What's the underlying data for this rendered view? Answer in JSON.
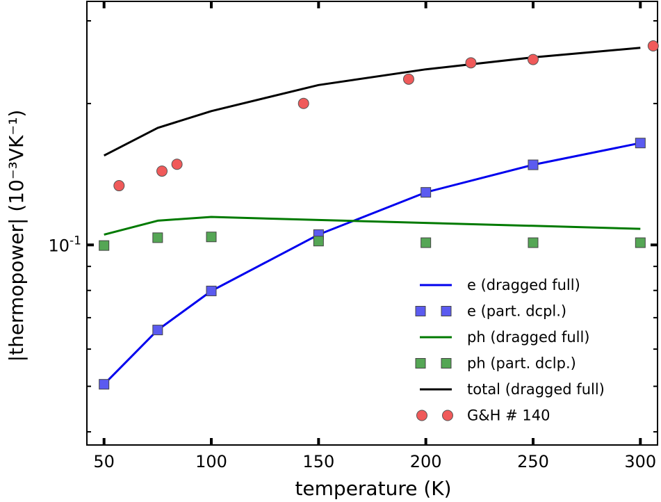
{
  "chart_data": {
    "type": "line",
    "title": "",
    "xlabel": "temperature (K)",
    "ylabel": "|thermopower| (10⁻³VK⁻¹)",
    "xlim": [
      42,
      308
    ],
    "ylim": [
      0.0375,
      0.33
    ],
    "yscale": "log",
    "x_ticks": [
      50,
      100,
      150,
      200,
      250,
      300
    ],
    "x_tick_labels": [
      "50",
      "100",
      "150",
      "200",
      "250",
      "300"
    ],
    "y_major_tick": {
      "value": 0.1,
      "label_base": "10",
      "label_exp": "-1"
    },
    "y_minor_ticks": [
      0.04,
      0.05,
      0.06,
      0.07,
      0.08,
      0.09,
      0.2,
      0.3
    ],
    "grid": false,
    "legend_position": "lower-right",
    "series": [
      {
        "name": "e (dragged full)",
        "kind": "line",
        "color": "#0000ee",
        "x": [
          50,
          75,
          100,
          150,
          200,
          250,
          300
        ],
        "y": [
          0.0505,
          0.0659,
          0.0798,
          0.1052,
          0.1294,
          0.1481,
          0.1648
        ]
      },
      {
        "name": "e (part. dcpl.)",
        "kind": "square",
        "color": "#5b5bf0",
        "x": [
          50,
          75,
          100,
          150,
          200,
          250,
          300
        ],
        "y": [
          0.0505,
          0.0659,
          0.0798,
          0.1052,
          0.1294,
          0.1481,
          0.1648
        ]
      },
      {
        "name": "ph (dragged full)",
        "kind": "line",
        "color": "#007a00",
        "x": [
          50,
          75,
          100,
          150,
          200,
          250,
          300
        ],
        "y": [
          0.1052,
          0.1126,
          0.1147,
          0.113,
          0.1114,
          0.1098,
          0.1082
        ]
      },
      {
        "name": "ph (part. dclp.)",
        "kind": "square",
        "color": "#55a655",
        "x": [
          50,
          75,
          100,
          150,
          200,
          250,
          300
        ],
        "y": [
          0.0997,
          0.1036,
          0.104,
          0.1019,
          0.1011,
          0.1011,
          0.1011
        ]
      },
      {
        "name": "total (dragged full)",
        "kind": "line",
        "color": "#000000",
        "x": [
          50,
          75,
          100,
          150,
          200,
          250,
          300
        ],
        "y": [
          0.155,
          0.1775,
          0.1927,
          0.219,
          0.2365,
          0.2508,
          0.2629
        ]
      },
      {
        "name": "G&H # 140",
        "kind": "circle",
        "color": "#f05a5a",
        "x": [
          57,
          77,
          84,
          143,
          192,
          221,
          250,
          306
        ],
        "y": [
          0.1337,
          0.1436,
          0.1485,
          0.2001,
          0.2254,
          0.2442,
          0.2482,
          0.2653
        ]
      }
    ]
  }
}
